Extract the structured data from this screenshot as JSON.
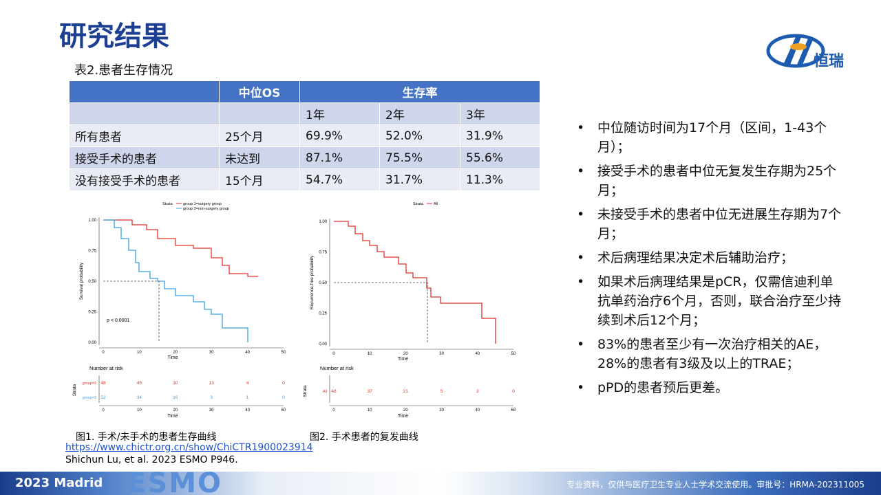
{
  "header": {
    "title": "研究结果",
    "logo_text": "恒瑞"
  },
  "table": {
    "caption": "表2.患者生存情况",
    "header": {
      "median_os": "中位OS",
      "survival_rate": "生存率"
    },
    "subheader": [
      "1年",
      "2年",
      "3年"
    ],
    "rows": [
      [
        "所有患者",
        "25个月",
        "69.9%",
        "52.0%",
        "31.9%"
      ],
      [
        "接受手术的患者",
        "未达到",
        "87.1%",
        "75.5%",
        "55.6%"
      ],
      [
        "没有接受手术的患者",
        "15个月",
        "54.7%",
        "31.7%",
        "11.3%"
      ]
    ]
  },
  "figures": [
    {
      "legend_title": "Strata",
      "legend": [
        "group 1=surgery group",
        "group 2=non-surgery group"
      ],
      "y_label": "Survival probability",
      "yticks": [
        "1.00",
        "0.75",
        "0.50",
        "0.25",
        "0.00"
      ],
      "xticks": [
        "0",
        "10",
        "20",
        "30",
        "40",
        "50"
      ],
      "x_label": "Time",
      "annotation": "p < 0.0001",
      "risk_title": "Number at risk",
      "risk_y_label": "Strata",
      "risk_rows": [
        {
          "label": "group=1",
          "counts": [
            "48",
            "45",
            "30",
            "13",
            "4",
            "0"
          ]
        },
        {
          "label": "group=2",
          "counts": [
            "52",
            "34",
            "16",
            "3",
            "1",
            "0"
          ]
        }
      ],
      "caption": "图1. 手术/未手术的患者生存曲线"
    },
    {
      "legend_title": "Strata",
      "legend": [
        "All"
      ],
      "y_label": "Recurrence-free probability",
      "yticks": [
        "1.00",
        "0.75",
        "0.50",
        "0.25",
        "0.00"
      ],
      "xticks": [
        "0",
        "10",
        "20",
        "30",
        "40",
        "50"
      ],
      "x_label": "Time",
      "risk_title": "Number at risk",
      "risk_y_label": "Strata",
      "risk_rows": [
        {
          "label": "All",
          "counts": [
            "48",
            "37",
            "21",
            "5",
            "3",
            "0"
          ]
        }
      ],
      "caption": "图2. 手术患者的复发曲线"
    }
  ],
  "bullets": [
    "中位随访时间为17个月（区间，1-43个月）；",
    "接受手术的患者中位无复发生存期为25个月；",
    "未接受手术的患者中位无进展生存期为7个月；",
    "术后病理结果决定术后辅助治疗；",
    "如果术后病理结果是pCR，仅需信迪利单抗单药治疗6个月，否则，联合治疗至少持续到术后12个月；",
    "83%的患者至少有一次治疗相关的AE，28%的患者有3级及以上的TRAE；",
    "pPD的患者预后更差。"
  ],
  "references": {
    "link": "https://www.chictr.org.cn/show/ChiCTR1900023914",
    "citation": "Shichun Lu, et al. 2023 ESMO P946."
  },
  "footer": {
    "event": "2023 Madrid",
    "logo": "ESMO",
    "disclaimer": "专业资料，仅供与医疗卫生专业人士学术交流使用。审批号：HRMA-202311005"
  }
}
